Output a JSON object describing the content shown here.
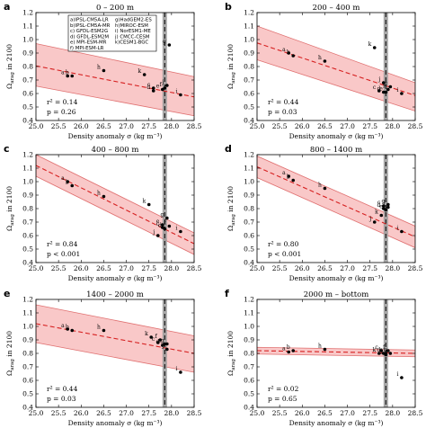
{
  "figure": {
    "ylabel": "Ω_arag in 2100",
    "xlabel": "Density anomaly σ (kg m⁻³)",
    "legend": [
      "a)IPSL-CM5A-LR",
      "b)IPSL-CM5A-MR",
      "c) GFDL-ESM2G",
      "d) GFDL-ESM2M",
      "e) MPI-ESM-MR",
      "f) MPI-ESM-LR",
      "g)HadGEM2-ES",
      "h)MIROC-ESM",
      "i) NorESM1-ME",
      "j) CMCC-CESM",
      "k)CESM1-BGC"
    ]
  },
  "chart_data": [
    {
      "type": "scatter",
      "panel": "a",
      "title": "0 – 200 m",
      "xlim": [
        25.0,
        28.5
      ],
      "ylim": [
        0.4,
        1.2
      ],
      "xticks": [
        "25.0",
        "25.5",
        "26.0",
        "26.5",
        "27.0",
        "27.5",
        "28.0",
        "28.5"
      ],
      "yticks": [
        "0.4",
        "0.5",
        "0.6",
        "0.7",
        "0.8",
        "0.9",
        "1.0",
        "1.1",
        "1.2"
      ],
      "fit": {
        "x": [
          25.0,
          28.5
        ],
        "y": [
          0.805,
          0.575
        ]
      },
      "band": {
        "upper": [
          0.97,
          0.725
        ],
        "lower": [
          0.655,
          0.435
        ]
      },
      "obs_x": 27.85,
      "obs_halfwidth": 0.05,
      "stats": [
        "r² = 0.14",
        "p = 0.26"
      ],
      "points": [
        {
          "label": "a",
          "x": 25.7,
          "y": 0.73
        },
        {
          "label": "b",
          "x": 25.8,
          "y": 0.73
        },
        {
          "label": "c",
          "x": 27.6,
          "y": 0.64
        },
        {
          "label": "d",
          "x": 27.6,
          "y": 0.62
        },
        {
          "label": "e",
          "x": 27.8,
          "y": 0.63
        },
        {
          "label": "f",
          "x": 27.85,
          "y": 0.64
        },
        {
          "label": "g",
          "x": 27.95,
          "y": 0.96
        },
        {
          "label": "h",
          "x": 26.5,
          "y": 0.77
        },
        {
          "label": "i",
          "x": 28.2,
          "y": 0.59
        },
        {
          "label": "j",
          "x": 27.9,
          "y": 0.66
        },
        {
          "label": "k",
          "x": 27.4,
          "y": 0.74
        }
      ]
    },
    {
      "type": "scatter",
      "panel": "b",
      "title": "200 – 400 m",
      "xlim": [
        25.0,
        28.5
      ],
      "ylim": [
        0.4,
        1.2
      ],
      "xticks": [
        "25.0",
        "25.5",
        "26.0",
        "26.5",
        "27.0",
        "27.5",
        "28.0",
        "28.5"
      ],
      "yticks": [
        "0.4",
        "0.5",
        "0.6",
        "0.7",
        "0.8",
        "0.9",
        "1.0",
        "1.1",
        "1.2"
      ],
      "fit": {
        "x": [
          25.0,
          28.5
        ],
        "y": [
          0.975,
          0.585
        ]
      },
      "band": {
        "upper": [
          1.1,
          0.68
        ],
        "lower": [
          0.85,
          0.47
        ]
      },
      "obs_x": 27.85,
      "obs_halfwidth": 0.05,
      "stats": [
        "r² = 0.44",
        "p = 0.03"
      ],
      "points": [
        {
          "label": "a",
          "x": 25.7,
          "y": 0.9
        },
        {
          "label": "b",
          "x": 25.8,
          "y": 0.88
        },
        {
          "label": "c",
          "x": 27.7,
          "y": 0.62
        },
        {
          "label": "d",
          "x": 27.8,
          "y": 0.61
        },
        {
          "label": "e",
          "x": 27.85,
          "y": 0.61
        },
        {
          "label": "f",
          "x": 27.9,
          "y": 0.63
        },
        {
          "label": "g",
          "x": 27.95,
          "y": 0.65
        },
        {
          "label": "h",
          "x": 26.5,
          "y": 0.84
        },
        {
          "label": "i",
          "x": 28.2,
          "y": 0.6
        },
        {
          "label": "j",
          "x": 27.8,
          "y": 0.68
        },
        {
          "label": "k",
          "x": 27.6,
          "y": 0.94
        }
      ]
    },
    {
      "type": "scatter",
      "panel": "c",
      "title": "400 – 800 m",
      "xlim": [
        25.0,
        28.5
      ],
      "ylim": [
        0.4,
        1.2
      ],
      "xticks": [
        "25.0",
        "25.5",
        "26.0",
        "26.5",
        "27.0",
        "27.5",
        "28.0",
        "28.5"
      ],
      "yticks": [
        "0.4",
        "0.5",
        "0.6",
        "0.7",
        "0.8",
        "0.9",
        "1.0",
        "1.1",
        "1.2"
      ],
      "fit": {
        "x": [
          25.0,
          28.5
        ],
        "y": [
          1.12,
          0.54
        ]
      },
      "band": {
        "upper": [
          1.2,
          0.62
        ],
        "lower": [
          1.04,
          0.46
        ]
      },
      "obs_x": 27.85,
      "obs_halfwidth": 0.05,
      "stats": [
        "r² = 0.84",
        "p < 0.001"
      ],
      "points": [
        {
          "label": "a",
          "x": 25.7,
          "y": 1.0
        },
        {
          "label": "b",
          "x": 25.8,
          "y": 0.97
        },
        {
          "label": "c",
          "x": 27.8,
          "y": 0.66
        },
        {
          "label": "d",
          "x": 27.85,
          "y": 0.65
        },
        {
          "label": "e",
          "x": 27.8,
          "y": 0.68
        },
        {
          "label": "f",
          "x": 27.95,
          "y": 0.67
        },
        {
          "label": "g",
          "x": 27.9,
          "y": 0.73
        },
        {
          "label": "h",
          "x": 26.5,
          "y": 0.89
        },
        {
          "label": "i",
          "x": 28.2,
          "y": 0.63
        },
        {
          "label": "j",
          "x": 27.7,
          "y": 0.6
        },
        {
          "label": "k",
          "x": 27.5,
          "y": 0.83
        }
      ]
    },
    {
      "type": "scatter",
      "panel": "d",
      "title": "800 – 1400 m",
      "xlim": [
        25.0,
        28.5
      ],
      "ylim": [
        0.4,
        1.2
      ],
      "xticks": [
        "25.0",
        "25.5",
        "26.0",
        "26.5",
        "27.0",
        "27.5",
        "28.0",
        "28.5"
      ],
      "yticks": [
        "0.4",
        "0.5",
        "0.6",
        "0.7",
        "0.8",
        "0.9",
        "1.0",
        "1.1",
        "1.2"
      ],
      "fit": {
        "x": [
          25.0,
          28.5
        ],
        "y": [
          1.11,
          0.59
        ]
      },
      "band": {
        "upper": [
          1.19,
          0.67
        ],
        "lower": [
          1.03,
          0.51
        ]
      },
      "obs_x": 27.85,
      "obs_halfwidth": 0.05,
      "stats": [
        "r² = 0.80",
        "p < 0.001"
      ],
      "points": [
        {
          "label": "a",
          "x": 25.7,
          "y": 1.04
        },
        {
          "label": "b",
          "x": 25.8,
          "y": 1.01
        },
        {
          "label": "c",
          "x": 27.8,
          "y": 0.82
        },
        {
          "label": "d",
          "x": 27.8,
          "y": 0.8
        },
        {
          "label": "e",
          "x": 27.85,
          "y": 0.79
        },
        {
          "label": "f",
          "x": 27.9,
          "y": 0.81
        },
        {
          "label": "g",
          "x": 27.9,
          "y": 0.83
        },
        {
          "label": "h",
          "x": 26.5,
          "y": 0.95
        },
        {
          "label": "i",
          "x": 28.2,
          "y": 0.63
        },
        {
          "label": "j",
          "x": 27.6,
          "y": 0.7
        },
        {
          "label": "k",
          "x": 27.75,
          "y": 0.75
        }
      ]
    },
    {
      "type": "scatter",
      "panel": "e",
      "title": "1400 – 2000 m",
      "xlim": [
        25.0,
        28.5
      ],
      "ylim": [
        0.4,
        1.2
      ],
      "xticks": [
        "25.0",
        "25.5",
        "26.0",
        "26.5",
        "27.0",
        "27.5",
        "28.0",
        "28.5"
      ],
      "yticks": [
        "0.4",
        "0.5",
        "0.6",
        "0.7",
        "0.8",
        "0.9",
        "1.0",
        "1.1",
        "1.2"
      ],
      "fit": {
        "x": [
          25.0,
          28.5
        ],
        "y": [
          1.02,
          0.8
        ]
      },
      "band": {
        "upper": [
          1.16,
          0.93
        ],
        "lower": [
          0.88,
          0.66
        ]
      },
      "obs_x": 27.85,
      "obs_halfwidth": 0.05,
      "stats": [
        "r² = 0.44",
        "p = 0.03"
      ],
      "points": [
        {
          "label": "a",
          "x": 25.7,
          "y": 0.98
        },
        {
          "label": "b",
          "x": 25.8,
          "y": 0.97
        },
        {
          "label": "c",
          "x": 27.7,
          "y": 0.88
        },
        {
          "label": "d",
          "x": 27.8,
          "y": 0.86
        },
        {
          "label": "e",
          "x": 27.85,
          "y": 0.87
        },
        {
          "label": "f",
          "x": 27.75,
          "y": 0.9
        },
        {
          "label": "g",
          "x": 27.9,
          "y": 0.87
        },
        {
          "label": "h",
          "x": 26.5,
          "y": 0.97
        },
        {
          "label": "i",
          "x": 28.2,
          "y": 0.66
        },
        {
          "label": "j",
          "x": 27.9,
          "y": 0.83
        },
        {
          "label": "k",
          "x": 27.55,
          "y": 0.92
        }
      ]
    },
    {
      "type": "scatter",
      "panel": "f",
      "title": "2000 m – bottom",
      "xlim": [
        25.0,
        28.5
      ],
      "ylim": [
        0.4,
        1.2
      ],
      "xticks": [
        "25.0",
        "25.5",
        "26.0",
        "26.5",
        "27.0",
        "27.5",
        "28.0",
        "28.5"
      ],
      "yticks": [
        "0.4",
        "0.5",
        "0.6",
        "0.7",
        "0.8",
        "0.9",
        "1.0",
        "1.1",
        "1.2"
      ],
      "fit": {
        "x": [
          25.0,
          28.5
        ],
        "y": [
          0.82,
          0.8
        ]
      },
      "band": {
        "upper": [
          0.845,
          0.825
        ],
        "lower": [
          0.795,
          0.775
        ]
      },
      "obs_x": 27.85,
      "obs_halfwidth": 0.05,
      "stats": [
        "r² = 0.02",
        "p = 0.65"
      ],
      "points": [
        {
          "label": "a",
          "x": 25.7,
          "y": 0.81
        },
        {
          "label": "b",
          "x": 25.8,
          "y": 0.82
        },
        {
          "label": "c",
          "x": 27.75,
          "y": 0.82
        },
        {
          "label": "d",
          "x": 27.8,
          "y": 0.8
        },
        {
          "label": "e",
          "x": 27.85,
          "y": 0.8
        },
        {
          "label": "f",
          "x": 27.9,
          "y": 0.82
        },
        {
          "label": "g",
          "x": 27.95,
          "y": 0.8
        },
        {
          "label": "h",
          "x": 26.5,
          "y": 0.83
        },
        {
          "label": "i",
          "x": 28.2,
          "y": 0.62
        },
        {
          "label": "j",
          "x": 27.85,
          "y": 0.79
        },
        {
          "label": "k",
          "x": 27.7,
          "y": 0.8
        }
      ]
    }
  ]
}
